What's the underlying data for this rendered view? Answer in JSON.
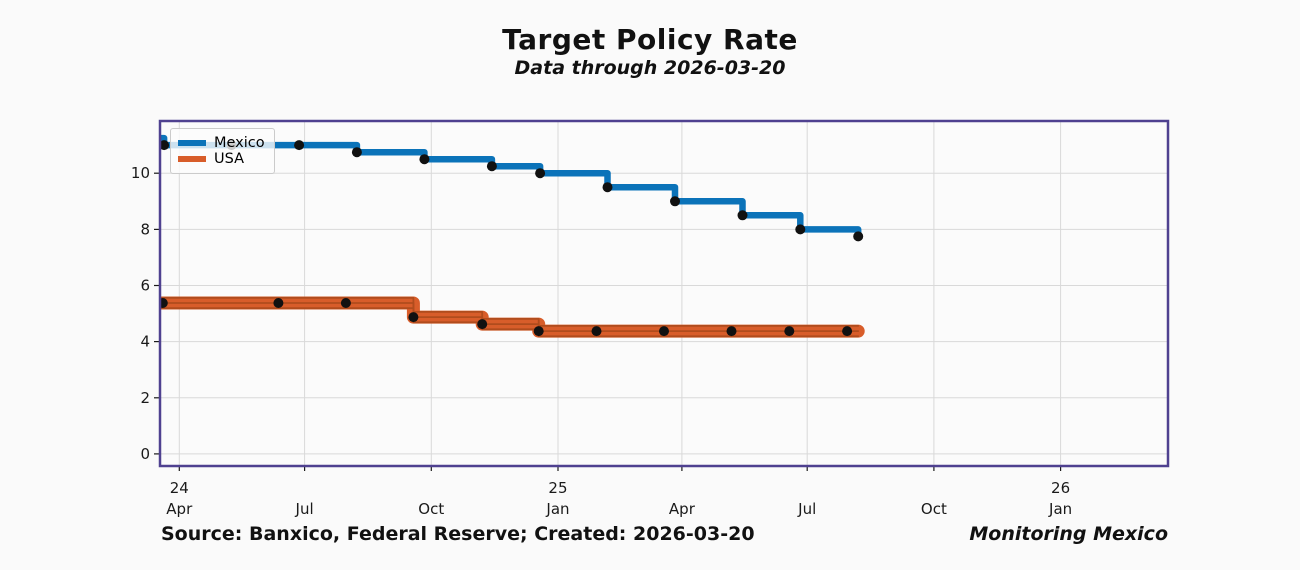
{
  "header": {
    "title": "Target Policy Rate",
    "subtitle": "Data through 2026-03-20"
  },
  "footer": {
    "source": "Source: Banxico, Federal Reserve; Created: 2026-03-20",
    "brand": "Monitoring Mexico"
  },
  "legend": {
    "position": "upper-left",
    "items": [
      {
        "label": "Mexico",
        "color": "#0b73b9"
      },
      {
        "label": "USA",
        "color": "#d85d2a"
      }
    ]
  },
  "colors": {
    "figure_bg": "#fafafa",
    "plot_bg": "#fbfbfb",
    "spine": "#4f4190",
    "grid": "#d9d9d9",
    "tick": "#1a1a1a",
    "text": "#1a1a1a",
    "marker": "#111111",
    "mexico_line": "#0b73b9",
    "usa_band": "#d85d2a",
    "usa_band_edge": "#b04c1d"
  },
  "chart_data": {
    "type": "line",
    "title": "Target Policy Rate",
    "subtitle": "Data through 2026-03-20",
    "xlabel": "",
    "ylabel": "",
    "grid": true,
    "legend_position": "upper left",
    "x_axis": {
      "lim": [
        "2024-03-18",
        "2026-03-20"
      ],
      "ticks": [
        {
          "date": "2024-04-01",
          "year": "24",
          "month": "Apr"
        },
        {
          "date": "2024-07-01",
          "year": "",
          "month": "Jul"
        },
        {
          "date": "2024-10-01",
          "year": "",
          "month": "Oct"
        },
        {
          "date": "2025-01-01",
          "year": "25",
          "month": "Jan"
        },
        {
          "date": "2025-04-01",
          "year": "",
          "month": "Apr"
        },
        {
          "date": "2025-07-01",
          "year": "",
          "month": "Jul"
        },
        {
          "date": "2025-10-01",
          "year": "",
          "month": "Oct"
        },
        {
          "date": "2026-01-01",
          "year": "26",
          "month": "Jan"
        }
      ]
    },
    "y_axis": {
      "lim": [
        -0.43,
        11.86
      ],
      "ticks": [
        0,
        2,
        4,
        6,
        8,
        10
      ]
    },
    "series": [
      {
        "name": "Mexico",
        "style": "step-post",
        "color": "#0b73b9",
        "line_width": 6.5,
        "points": [
          [
            "2024-03-18",
            11.25
          ],
          [
            "2024-03-21",
            11.0
          ],
          [
            "2024-08-08",
            10.75
          ],
          [
            "2024-09-26",
            10.5
          ],
          [
            "2024-11-14",
            10.25
          ],
          [
            "2024-12-19",
            10.0
          ],
          [
            "2025-02-06",
            9.5
          ],
          [
            "2025-03-27",
            9.0
          ],
          [
            "2025-05-15",
            8.5
          ],
          [
            "2025-06-26",
            8.0
          ],
          [
            "2025-08-07",
            7.75
          ]
        ],
        "markers": [
          [
            "2024-03-21",
            11.0
          ],
          [
            "2024-05-09",
            11.0
          ],
          [
            "2024-06-27",
            11.0
          ],
          [
            "2024-08-08",
            10.75
          ],
          [
            "2024-09-26",
            10.5
          ],
          [
            "2024-11-14",
            10.25
          ],
          [
            "2024-12-19",
            10.0
          ],
          [
            "2025-02-06",
            9.5
          ],
          [
            "2025-03-27",
            9.0
          ],
          [
            "2025-05-15",
            8.5
          ],
          [
            "2025-06-26",
            8.0
          ],
          [
            "2025-08-07",
            7.75
          ]
        ]
      },
      {
        "name": "USA",
        "style": "step-post",
        "color": "#d85d2a",
        "band_edge_color": "#b04c1d",
        "line_width": 13,
        "band_range": 0.25,
        "note": "values are midpoints of the 0.25-wide federal funds target range, drawn as a striped band",
        "points": [
          [
            "2024-03-18",
            5.375
          ],
          [
            "2024-09-18",
            4.875
          ],
          [
            "2024-11-07",
            4.625
          ],
          [
            "2024-12-18",
            4.375
          ],
          [
            "2025-08-07",
            4.375
          ]
        ],
        "markers": [
          [
            "2024-03-20",
            5.375
          ],
          [
            "2024-06-12",
            5.375
          ],
          [
            "2024-07-31",
            5.375
          ],
          [
            "2024-09-18",
            4.875
          ],
          [
            "2024-11-07",
            4.625
          ],
          [
            "2024-12-18",
            4.375
          ],
          [
            "2025-01-29",
            4.375
          ],
          [
            "2025-03-19",
            4.375
          ],
          [
            "2025-05-07",
            4.375
          ],
          [
            "2025-06-18",
            4.375
          ],
          [
            "2025-07-30",
            4.375
          ]
        ]
      }
    ]
  }
}
